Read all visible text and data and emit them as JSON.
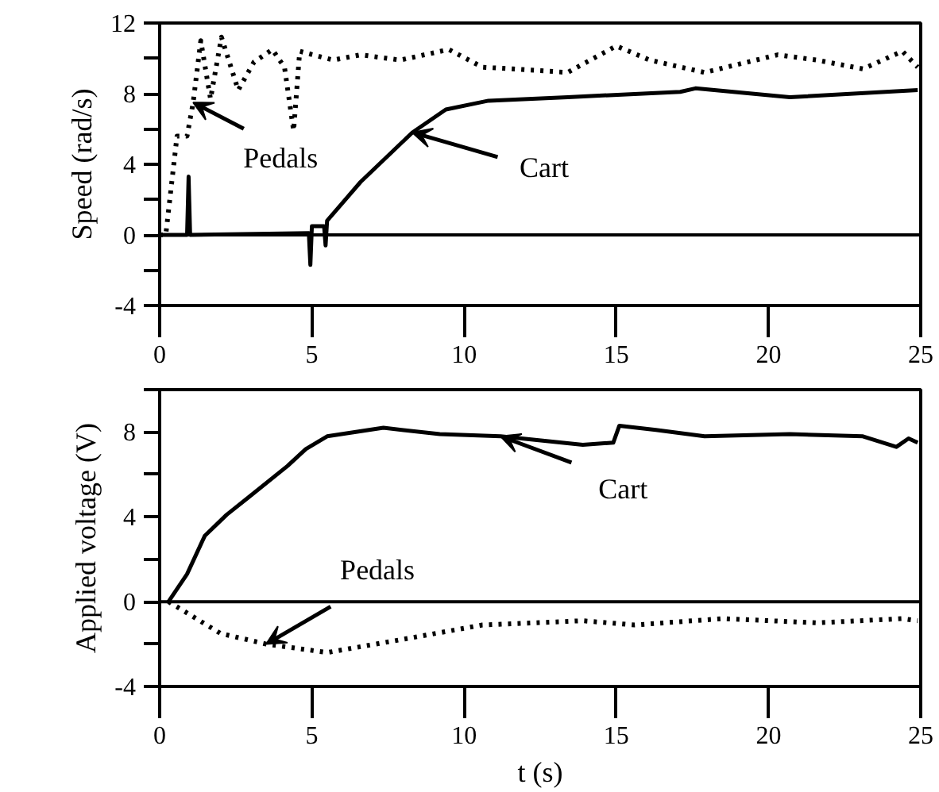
{
  "chart_data": [
    {
      "type": "line",
      "ylabel": "Speed (rad/s)",
      "xlim": [
        0,
        25
      ],
      "ylim": [
        -4,
        12
      ],
      "xticks": [
        0,
        5,
        10,
        15,
        20,
        25
      ],
      "yticks": [
        -4,
        {
          "value": -2,
          "label": null
        },
        0,
        {
          "value": 2,
          "label": null
        },
        4,
        {
          "value": 6,
          "label": null
        },
        8,
        {
          "value": 10,
          "label": null
        },
        12
      ],
      "grid": false,
      "ref_lines": [
        {
          "axis": "y",
          "value": 0,
          "label": null,
          "color": "#000000",
          "line_style": "solid"
        }
      ],
      "series": [
        {
          "color": "#000000",
          "line_style": "dotted",
          "x": [
            0,
            0.2,
            0.57,
            0.9,
            1.1,
            1.35,
            1.67,
            2.03,
            2.58,
            3.1,
            3.7,
            4.1,
            4.4,
            4.6,
            5.7,
            6.6,
            7.9,
            9.5,
            10.6,
            11.6,
            13.4,
            15,
            16.1,
            17.9,
            20.3,
            21.6,
            23.1,
            24.4,
            24.9
          ],
          "values": [
            0,
            0,
            5.6,
            5.6,
            7.5,
            11,
            7.7,
            11.2,
            8.2,
            9.8,
            10.5,
            9.5,
            5.9,
            10.4,
            9.9,
            10.2,
            9.9,
            10.5,
            9.5,
            9.4,
            9.2,
            10.7,
            9.9,
            9.2,
            10.2,
            9.9,
            9.4,
            10.4,
            9.5
          ]
        },
        {
          "color": "#000000",
          "line_style": "solid",
          "x": [
            0,
            0.9,
            0.95,
            1.0,
            4.9,
            4.95,
            5.0,
            5.4,
            5.45,
            5.5,
            6.6,
            8.3,
            9.4,
            10.8,
            13.4,
            17.1,
            17.6,
            20.7,
            24.9
          ],
          "values": [
            0,
            0,
            3.3,
            0,
            0.1,
            -1.7,
            0.5,
            0.5,
            -0.6,
            0.8,
            3.0,
            5.8,
            7.1,
            7.6,
            7.8,
            8.1,
            8.3,
            7.8,
            8.2
          ]
        }
      ],
      "annotations": [
        {
          "text": "Pedals",
          "x": 1.1,
          "y": 7.5
        },
        {
          "text": "Cart",
          "x": 8.3,
          "y": 5.8
        }
      ]
    },
    {
      "type": "line",
      "xlabel": "t (s)",
      "ylabel": "Applied voltage (V)",
      "xlim": [
        0,
        25
      ],
      "ylim": [
        -4,
        10
      ],
      "xticks": [
        0,
        5,
        10,
        15,
        20,
        25
      ],
      "yticks": [
        -4,
        {
          "value": -2,
          "label": null
        },
        0,
        {
          "value": 2,
          "label": null
        },
        4,
        {
          "value": 6,
          "label": null
        },
        8,
        {
          "value": 10,
          "label": null
        }
      ],
      "grid": false,
      "ref_lines": [
        {
          "axis": "y",
          "value": 0,
          "label": null,
          "color": "#000000",
          "line_style": "solid"
        }
      ],
      "series": [
        {
          "color": "#000000",
          "line_style": "solid",
          "x": [
            0.29,
            0.9,
            1.48,
            2.2,
            2.9,
            4.2,
            4.8,
            5.5,
            7.35,
            9.2,
            11.2,
            13.9,
            14.9,
            15.1,
            16.3,
            17.9,
            20.7,
            23.1,
            24.2,
            24.6,
            24.9
          ],
          "values": [
            0,
            1.3,
            3.1,
            4.1,
            4.9,
            6.4,
            7.2,
            7.8,
            8.2,
            7.9,
            7.8,
            7.4,
            7.5,
            8.3,
            8.1,
            7.8,
            7.9,
            7.8,
            7.3,
            7.7,
            7.5
          ]
        },
        {
          "color": "#000000",
          "line_style": "dotted",
          "x": [
            0.29,
            2.0,
            3.5,
            5.5,
            7.9,
            10.6,
            13.9,
            15.6,
            18.5,
            21.6,
            24.4,
            24.9
          ],
          "values": [
            0,
            -1.5,
            -2.0,
            -2.4,
            -1.8,
            -1.1,
            -0.9,
            -1.1,
            -0.8,
            -1.0,
            -0.8,
            -0.9
          ]
        }
      ],
      "annotations": [
        {
          "text": "Cart",
          "x": 11.2,
          "y": 7.8
        },
        {
          "text": "Pedals",
          "x": 3.5,
          "y": -2.0
        }
      ]
    }
  ]
}
